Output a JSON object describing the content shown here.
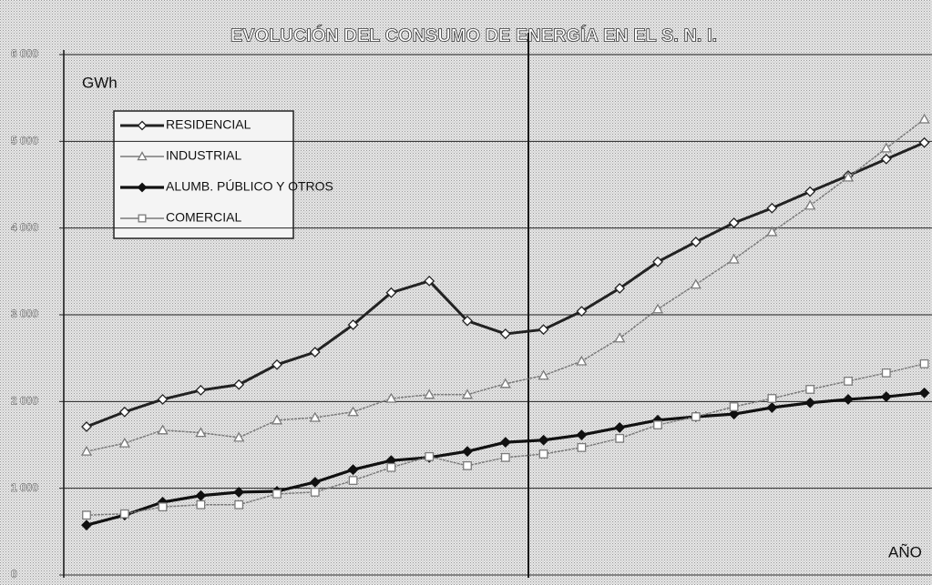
{
  "chart_data": {
    "type": "line",
    "title": "EVOLUCIÓN DEL CONSUMO DE ENERGÍA EN EL S. N. I.",
    "y_label": "GWh",
    "x_label": "AÑO",
    "categories": [
      null,
      null,
      null,
      null,
      null,
      null,
      null,
      null,
      null,
      null,
      null,
      null,
      null,
      null,
      null,
      null,
      null,
      null,
      null,
      null,
      null,
      null,
      null
    ],
    "series": [
      {
        "name": "RESIDENCIAL",
        "color": "#222222",
        "marker": "diamond-open",
        "values": [
          1710,
          1880,
          2025,
          2130,
          2195,
          2425,
          2570,
          2885,
          3255,
          3390,
          2930,
          2780,
          2830,
          3040,
          3305,
          3610,
          3840,
          4060,
          4230,
          4420,
          4605,
          4795,
          4985
        ]
      },
      {
        "name": "INDUSTRIAL",
        "color": "#7a7a7a",
        "marker": "triangle-open",
        "values": [
          1425,
          1520,
          1670,
          1640,
          1585,
          1785,
          1815,
          1880,
          2035,
          2080,
          2080,
          2205,
          2300,
          2465,
          2730,
          3065,
          3350,
          3640,
          3955,
          4260,
          4585,
          4920,
          5255
        ]
      },
      {
        "name": "ALUMB. PÚBLICO Y OTROS",
        "color": "#111111",
        "marker": "diamond-filled",
        "values": [
          575,
          690,
          840,
          915,
          955,
          965,
          1070,
          1215,
          1320,
          1355,
          1425,
          1530,
          1555,
          1615,
          1700,
          1785,
          1825,
          1855,
          1930,
          1985,
          2025,
          2055,
          2100
        ]
      },
      {
        "name": "COMERCIAL",
        "color": "#7a7a7a",
        "marker": "square-open",
        "values": [
          690,
          705,
          785,
          810,
          810,
          935,
          955,
          1090,
          1240,
          1365,
          1260,
          1355,
          1395,
          1470,
          1575,
          1730,
          1825,
          1940,
          2035,
          2140,
          2235,
          2330,
          2435
        ]
      }
    ],
    "ylim": [
      0,
      6000
    ],
    "yticks": [
      0,
      {
        "value": 1000,
        "label": "1 000"
      },
      {
        "value": 2000,
        "label": "2 000"
      },
      {
        "value": 3000,
        "label": "3 000"
      },
      {
        "value": 4000,
        "label": "4 000"
      },
      {
        "value": 5000,
        "label": "5 000"
      },
      {
        "value": 6000,
        "label": "6 000"
      }
    ],
    "grid": true
  }
}
